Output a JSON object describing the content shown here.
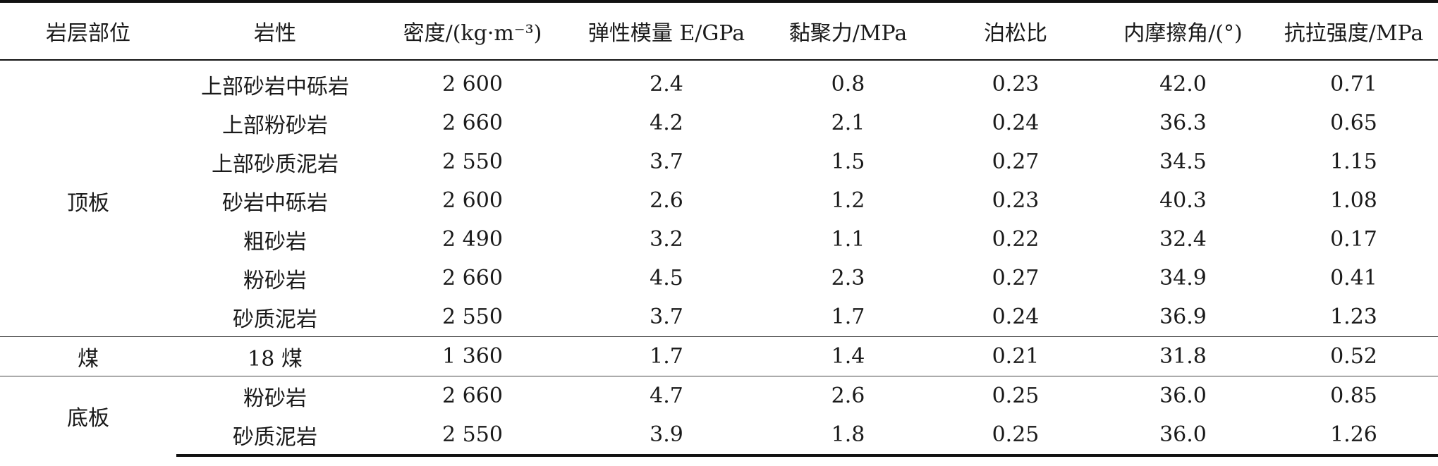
{
  "table": {
    "headers": [
      "岩层部位",
      "岩性",
      "密度/(kg·m⁻³)",
      "弹性模量 E/GPa",
      "黏聚力/MPa",
      "泊松比",
      "内摩擦角/(°)",
      "抗拉强度/MPa"
    ],
    "groups": [
      {
        "name": "顶板",
        "rows": [
          [
            "上部砂岩中砾岩",
            "2 600",
            "2.4",
            "0.8",
            "0.23",
            "42.0",
            "0.71"
          ],
          [
            "上部粉砂岩",
            "2 660",
            "4.2",
            "2.1",
            "0.24",
            "36.3",
            "0.65"
          ],
          [
            "上部砂质泥岩",
            "2 550",
            "3.7",
            "1.5",
            "0.27",
            "34.5",
            "1.15"
          ],
          [
            "砂岩中砾岩",
            "2 600",
            "2.6",
            "1.2",
            "0.23",
            "40.3",
            "1.08"
          ],
          [
            "粗砂岩",
            "2 490",
            "3.2",
            "1.1",
            "0.22",
            "32.4",
            "0.17"
          ],
          [
            "粉砂岩",
            "2 660",
            "4.5",
            "2.3",
            "0.27",
            "34.9",
            "0.41"
          ],
          [
            "砂质泥岩",
            "2 550",
            "3.7",
            "1.7",
            "0.24",
            "36.9",
            "1.23"
          ]
        ]
      },
      {
        "name": "煤",
        "rows": [
          [
            "18 煤",
            "1 360",
            "1.7",
            "1.4",
            "0.21",
            "31.8",
            "0.52"
          ]
        ]
      },
      {
        "name": "底板",
        "rows": [
          [
            "粉砂岩",
            "2 660",
            "4.7",
            "2.6",
            "0.25",
            "36.0",
            "0.85"
          ],
          [
            "砂质泥岩",
            "2 550",
            "3.9",
            "1.8",
            "0.25",
            "36.0",
            "1.26"
          ]
        ]
      }
    ]
  }
}
